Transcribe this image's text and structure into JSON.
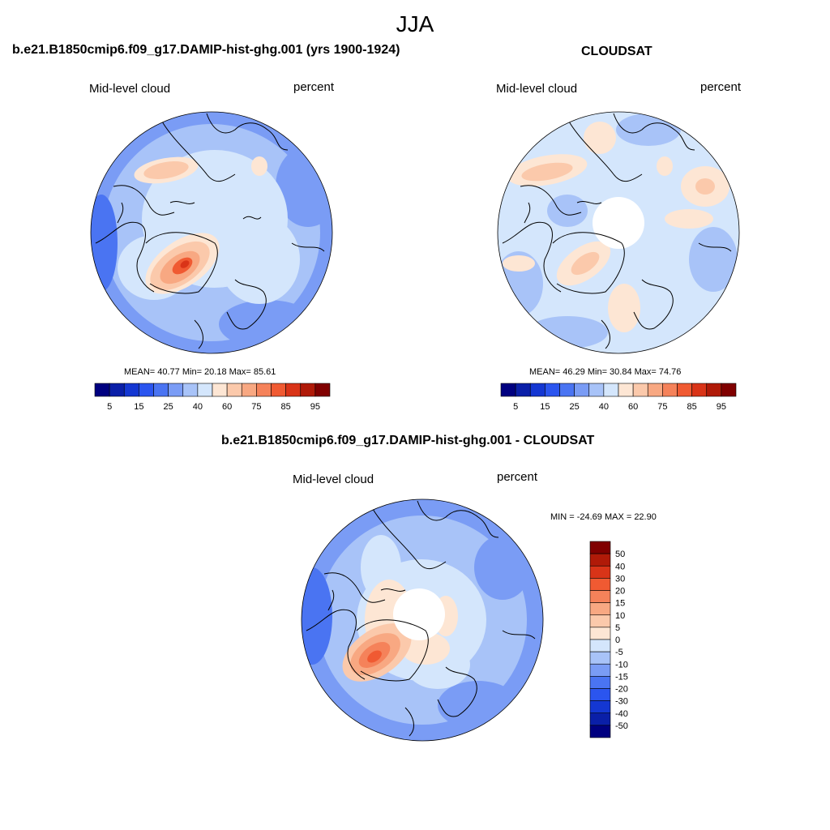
{
  "figure": {
    "title": "JJA"
  },
  "panels": [
    {
      "title": "b.e21.B1850cmip6.f09_g17.DAMIP-hist-ghg.001 (yrs 1900-1924)",
      "variable": "Mid-level cloud",
      "units": "percent",
      "stats": "MEAN=  40.77  Min=  20.18  Max=  85.61",
      "colorbar": {
        "levels": [
          5,
          10,
          15,
          20,
          25,
          30,
          40,
          50,
          60,
          65,
          75,
          80,
          85,
          90,
          95
        ],
        "labels": [
          "5",
          "15",
          "25",
          "40",
          "60",
          "75",
          "85",
          "95"
        ],
        "colors": [
          "#000080",
          "#0a1fa8",
          "#1437d2",
          "#2b55ef",
          "#4a74f2",
          "#7a9cf5",
          "#a8c3f8",
          "#d4e6fc",
          "#fde6d4",
          "#fbc9ab",
          "#f8a882",
          "#f5825a",
          "#f05a32",
          "#d93418",
          "#b01a08",
          "#800000"
        ]
      }
    },
    {
      "title": "CLOUDSAT",
      "variable": "Mid-level cloud",
      "units": "percent",
      "stats": "MEAN=  46.29  Min=  30.84  Max=  74.76",
      "colorbar": {
        "levels": [
          5,
          10,
          15,
          20,
          25,
          30,
          40,
          50,
          60,
          65,
          75,
          80,
          85,
          90,
          95
        ],
        "labels": [
          "5",
          "15",
          "25",
          "40",
          "60",
          "75",
          "85",
          "95"
        ],
        "colors": [
          "#000080",
          "#0a1fa8",
          "#1437d2",
          "#2b55ef",
          "#4a74f2",
          "#7a9cf5",
          "#a8c3f8",
          "#d4e6fc",
          "#fde6d4",
          "#fbc9ab",
          "#f8a882",
          "#f5825a",
          "#f05a32",
          "#d93418",
          "#b01a08",
          "#800000"
        ]
      }
    },
    {
      "title": "b.e21.B1850cmip6.f09_g17.DAMIP-hist-ghg.001 - CLOUDSAT",
      "variable": "Mid-level cloud",
      "units": "percent",
      "stats": "MIN = -24.69 MAX =  22.90",
      "colorbar": {
        "labels": [
          "50",
          "40",
          "30",
          "20",
          "15",
          "10",
          "5",
          "0",
          "-5",
          "-10",
          "-15",
          "-20",
          "-30",
          "-40",
          "-50"
        ],
        "colors": [
          "#800000",
          "#b01a08",
          "#d93418",
          "#f05a32",
          "#f5825a",
          "#f8a882",
          "#fbc9ab",
          "#fde6d4",
          "#d4e6fc",
          "#a8c3f8",
          "#7a9cf5",
          "#4a74f2",
          "#2b55ef",
          "#1437d2",
          "#0a1fa8",
          "#000080"
        ]
      }
    }
  ]
}
